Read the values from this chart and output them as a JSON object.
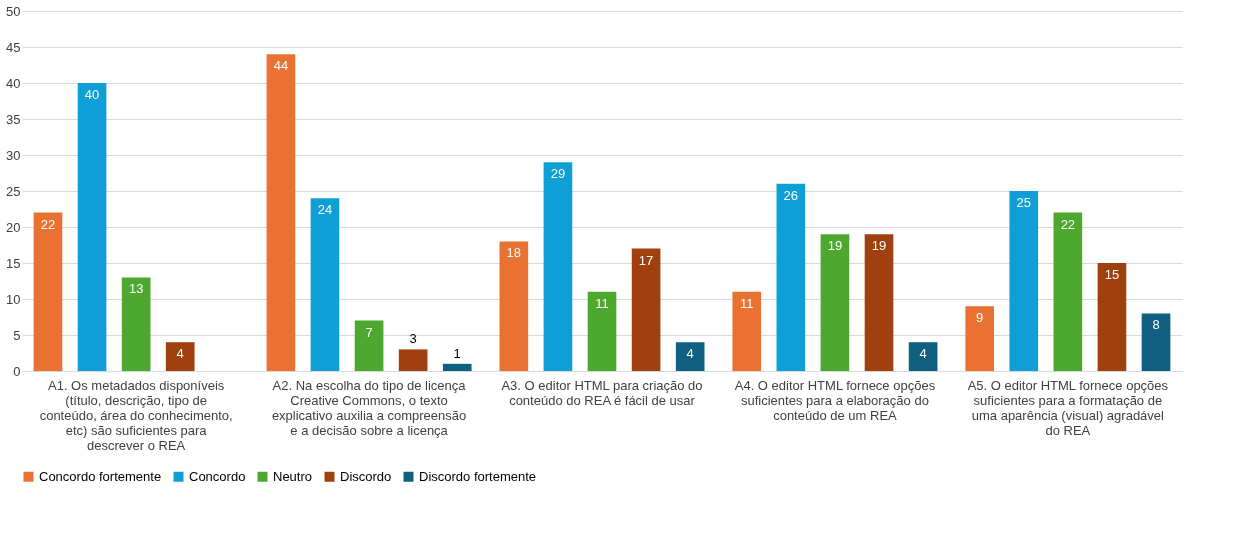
{
  "chart_data": {
    "type": "bar",
    "categories": [
      "A1. Os metadados disponíveis (título, descrição, tipo de conteúdo, área do conhecimento, etc) são suficientes para descrever o REA",
      "A2. Na escolha do tipo de licença Creative Commons, o texto explicativo auxilia a compreensão e a decisão sobre a licença",
      "A3. O editor HTML para criação do conteúdo do REA é fácil de usar",
      "A4. O editor HTML fornece opções suficientes para a elaboração do conteúdo de um REA",
      "A5. O editor HTML fornece opções suficientes para a formatação de uma aparência (visual) agradável do REA"
    ],
    "series": [
      {
        "name": "Concordo fortemente",
        "color": "#e97132",
        "values": [
          22,
          44,
          18,
          11,
          9
        ]
      },
      {
        "name": "Concordo",
        "color": "#0f9ed5",
        "values": [
          40,
          24,
          29,
          26,
          25
        ]
      },
      {
        "name": "Neutro",
        "color": "#4ea72e",
        "values": [
          13,
          7,
          11,
          19,
          22
        ]
      },
      {
        "name": "Discordo",
        "color": "#a0400f",
        "values": [
          4,
          3,
          17,
          19,
          15
        ]
      },
      {
        "name": "Discordo fortemente",
        "color": "#0e5f80",
        "values": [
          null,
          1,
          4,
          4,
          8
        ]
      }
    ],
    "ylim": [
      0,
      50
    ],
    "yticks": [
      0,
      5,
      10,
      15,
      20,
      25,
      30,
      35,
      40,
      45,
      50
    ],
    "grid": "y",
    "legend": "bottom",
    "data_labels": true
  }
}
